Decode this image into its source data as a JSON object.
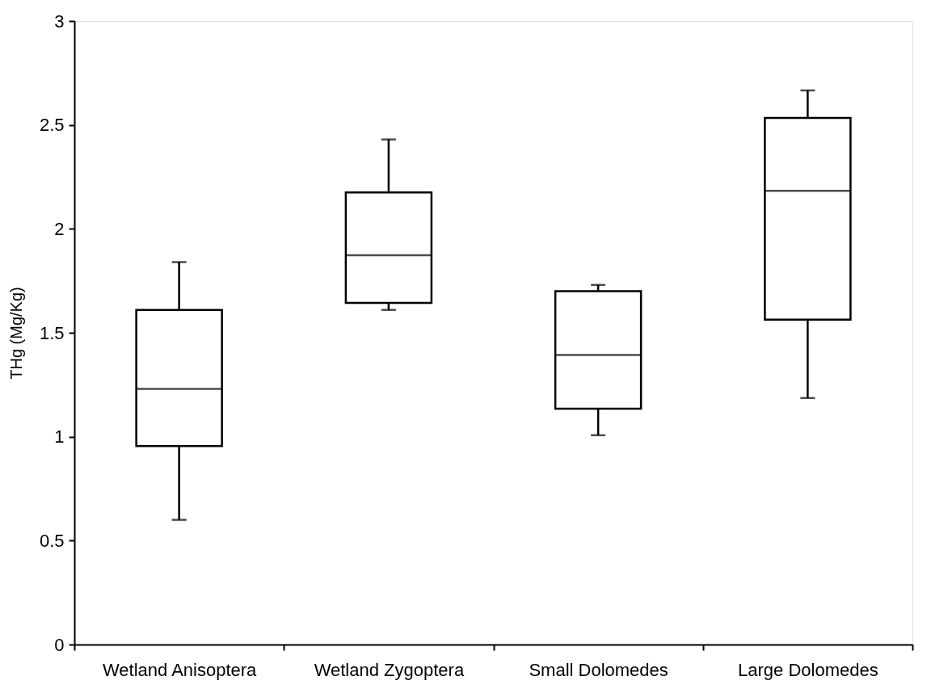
{
  "chart_data": {
    "type": "box",
    "ylabel": "THg (Mg/Kg)",
    "categories": [
      "Wetland Anisoptera",
      "Wetland Zygoptera",
      "Small Dolomedes",
      "Large Dolomedes"
    ],
    "boxes": [
      {
        "low": 0.6,
        "q1": 0.955,
        "median": 1.23,
        "q3": 1.61,
        "high": 1.84
      },
      {
        "low": 1.61,
        "q1": 1.644,
        "median": 1.873,
        "q3": 2.175,
        "high": 2.43
      },
      {
        "low": 1.007,
        "q1": 1.135,
        "median": 1.393,
        "q3": 1.7,
        "high": 1.73
      },
      {
        "low": 1.186,
        "q1": 1.563,
        "median": 2.183,
        "q3": 2.534,
        "high": 2.666
      }
    ],
    "ylim": [
      0,
      3
    ],
    "yticks": [
      0,
      0.5,
      1,
      1.5,
      2,
      2.5,
      3
    ],
    "grid": false
  }
}
